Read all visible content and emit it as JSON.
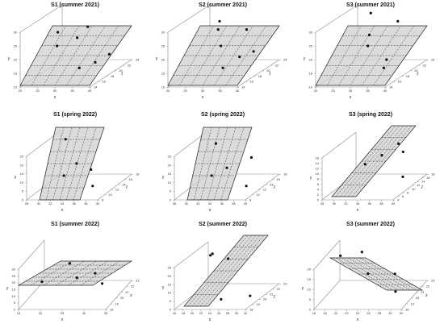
{
  "chart_data": [
    {
      "type": "scatter3d",
      "title": "S1 (summer 2021)",
      "xlabel": "x",
      "ylabel": "y",
      "zlabel": "z",
      "xticks": [
        "20",
        "25",
        "30",
        "35",
        "40"
      ],
      "yticks": [
        "10",
        "15",
        "20",
        "25",
        "30"
      ],
      "zticks": [
        "14",
        "16",
        "18",
        "20",
        "22",
        "24"
      ],
      "xlim": [
        20,
        40
      ],
      "ylim": [
        10,
        30
      ],
      "zlim": [
        14,
        24
      ],
      "points": [
        {
          "x": 26,
          "y": 26,
          "z": 18
        },
        {
          "x": 27,
          "y": 22,
          "z": 17
        },
        {
          "x": 31,
          "y": 25,
          "z": 21
        },
        {
          "x": 34,
          "y": 26,
          "z": 16
        },
        {
          "x": 31,
          "y": 12,
          "z": 19
        },
        {
          "x": 38,
          "y": 16,
          "z": 17
        },
        {
          "x": 36,
          "y": 14,
          "z": 22
        }
      ],
      "plane": {
        "tilt": "steep"
      }
    },
    {
      "type": "scatter3d",
      "title": "S2 (summer 2021)",
      "xlabel": "x",
      "ylabel": "y",
      "zlabel": "z",
      "xticks": [
        "20",
        "25",
        "30",
        "35",
        "40"
      ],
      "yticks": [
        "10",
        "15",
        "20",
        "25",
        "30"
      ],
      "zticks": [
        "14",
        "16",
        "18",
        "20",
        "22",
        "24"
      ],
      "xlim": [
        20,
        40
      ],
      "ylim": [
        10,
        30
      ],
      "zlim": [
        14,
        24
      ],
      "points": [
        {
          "x": 24,
          "y": 25,
          "z": 23
        },
        {
          "x": 26,
          "y": 24,
          "z": 21
        },
        {
          "x": 28,
          "y": 19,
          "z": 20
        },
        {
          "x": 33,
          "y": 23,
          "z": 22
        },
        {
          "x": 31,
          "y": 13,
          "z": 18
        },
        {
          "x": 37,
          "y": 18,
          "z": 17
        },
        {
          "x": 35,
          "y": 15,
          "z": 22
        }
      ],
      "plane": {
        "tilt": "steep"
      }
    },
    {
      "type": "scatter3d",
      "title": "S3 (summer 2021)",
      "xlabel": "x",
      "ylabel": "y",
      "zlabel": "z",
      "xticks": [
        "20",
        "25",
        "30",
        "35",
        "40"
      ],
      "yticks": [
        "10",
        "15",
        "20",
        "25",
        "30"
      ],
      "zticks": [
        "14",
        "16",
        "18",
        "20",
        "22",
        "24"
      ],
      "xlim": [
        20,
        40
      ],
      "ylim": [
        10,
        30
      ],
      "zlim": [
        14,
        24
      ],
      "points": [
        {
          "x": 25,
          "y": 28,
          "z": 23
        },
        {
          "x": 27,
          "y": 22,
          "z": 21
        },
        {
          "x": 29,
          "y": 20,
          "z": 19
        },
        {
          "x": 34,
          "y": 26,
          "z": 22
        },
        {
          "x": 36,
          "y": 14,
          "z": 17
        },
        {
          "x": 38,
          "y": 18,
          "z": 16
        }
      ],
      "plane": {
        "tilt": "steep"
      }
    },
    {
      "type": "scatter3d",
      "title": "S1 (spring 2022)",
      "xlabel": "x",
      "ylabel": "y",
      "zlabel": "z",
      "xticks": [
        "28",
        "30",
        "32",
        "34",
        "36",
        "38",
        "40"
      ],
      "yticks": [
        "0",
        "5",
        "10",
        "15",
        "20",
        "25"
      ],
      "zticks": [
        "8",
        "10",
        "12",
        "14",
        "16",
        "18"
      ],
      "xlim": [
        28,
        40
      ],
      "ylim": [
        0,
        25
      ],
      "zlim": [
        8,
        18
      ],
      "points": [
        {
          "x": 30,
          "y": 23,
          "z": 16
        },
        {
          "x": 33,
          "y": 12,
          "z": 14
        },
        {
          "x": 32,
          "y": 8,
          "z": 12
        },
        {
          "x": 36,
          "y": 10,
          "z": 13
        },
        {
          "x": 38,
          "y": 5,
          "z": 10
        }
      ],
      "plane": {
        "tilt": "vertical"
      }
    },
    {
      "type": "scatter3d",
      "title": "S2 (spring 2022)",
      "xlabel": "x",
      "ylabel": "y",
      "zlabel": "z",
      "xticks": [
        "28",
        "30",
        "32",
        "34",
        "36",
        "38",
        "40"
      ],
      "yticks": [
        "0",
        "5",
        "10",
        "15",
        "20",
        "25"
      ],
      "zticks": [
        "8",
        "10",
        "12",
        "14",
        "16",
        "18"
      ],
      "xlim": [
        28,
        40
      ],
      "ylim": [
        0,
        25
      ],
      "zlim": [
        8,
        18
      ],
      "points": [
        {
          "x": 31,
          "y": 22,
          "z": 15
        },
        {
          "x": 32,
          "y": 8,
          "z": 12
        },
        {
          "x": 34,
          "y": 11,
          "z": 13
        },
        {
          "x": 37,
          "y": 14,
          "z": 15
        },
        {
          "x": 39,
          "y": 5,
          "z": 10
        }
      ],
      "plane": {
        "tilt": "vertical"
      }
    },
    {
      "type": "scatter3d",
      "title": "S3 (spring 2022)",
      "xlabel": "x",
      "ylabel": "y",
      "zlabel": "z",
      "xticks": [
        "28",
        "30",
        "32",
        "34",
        "36",
        "38",
        "40"
      ],
      "yticks": [
        "0",
        "2",
        "4",
        "6",
        "8",
        "10",
        "12",
        "14",
        "16"
      ],
      "zticks": [
        "4",
        "6",
        "8",
        "10",
        "12",
        "14",
        "16",
        "18"
      ],
      "xlim": [
        28,
        40
      ],
      "ylim": [
        0,
        16
      ],
      "zlim": [
        4,
        18
      ],
      "points": [
        {
          "x": 32,
          "y": 8,
          "z": 12
        },
        {
          "x": 34,
          "y": 10,
          "z": 14
        },
        {
          "x": 36,
          "y": 13,
          "z": 16
        },
        {
          "x": 38,
          "y": 12,
          "z": 13
        },
        {
          "x": 40,
          "y": 6,
          "z": 8
        }
      ],
      "plane": {
        "tilt": "medium"
      }
    },
    {
      "type": "scatter3d",
      "title": "S1 (summer 2022)",
      "xlabel": "x",
      "ylabel": "y",
      "zlabel": "z",
      "xticks": [
        "15",
        "20",
        "25",
        "30",
        "35"
      ],
      "yticks": [
        "0",
        "5",
        "10",
        "15",
        "20",
        "25",
        "30"
      ],
      "zticks": [
        "18",
        "19",
        "20",
        "21",
        "22",
        "23"
      ],
      "xlim": [
        15,
        35
      ],
      "ylim": [
        0,
        30
      ],
      "zlim": [
        18,
        23
      ],
      "points": [
        {
          "x": 18,
          "y": 12,
          "z": 20
        },
        {
          "x": 22,
          "y": 17,
          "z": 22
        },
        {
          "x": 26,
          "y": 15,
          "z": 20
        },
        {
          "x": 29,
          "y": 14,
          "z": 21
        },
        {
          "x": 33,
          "y": 15,
          "z": 19
        }
      ],
      "plane": {
        "tilt": "shallow"
      }
    },
    {
      "type": "scatter3d",
      "title": "S2 (summer 2022)",
      "xlabel": "x",
      "ylabel": "y",
      "zlabel": "z",
      "xticks": [
        "16",
        "18",
        "20",
        "22",
        "24",
        "26",
        "28",
        "30",
        "32"
      ],
      "yticks": [
        "0",
        "5",
        "10",
        "15",
        "20",
        "25"
      ],
      "zticks": [
        "18",
        "19",
        "20",
        "21",
        "22",
        "23"
      ],
      "xlim": [
        16,
        32
      ],
      "ylim": [
        0,
        25
      ],
      "zlim": [
        18,
        23
      ],
      "points": [
        {
          "x": 18,
          "y": 20,
          "z": 22
        },
        {
          "x": 20,
          "y": 24,
          "z": 21
        },
        {
          "x": 22,
          "y": 18,
          "z": 22
        },
        {
          "x": 25,
          "y": 3,
          "z": 19
        },
        {
          "x": 30,
          "y": 2,
          "z": 20
        }
      ],
      "plane": {
        "tilt": "medium"
      }
    },
    {
      "type": "scatter3d",
      "title": "S3 (summer 2022)",
      "xlabel": "x",
      "ylabel": "y",
      "zlabel": "z",
      "xticks": [
        "16",
        "18",
        "20",
        "22",
        "24",
        "26",
        "28",
        "30",
        "32"
      ],
      "yticks": [
        "0",
        "5",
        "10",
        "15",
        "20"
      ],
      "zticks": [
        "18",
        "19",
        "20",
        "21",
        "22",
        "23"
      ],
      "xlim": [
        16,
        32
      ],
      "ylim": [
        0,
        20
      ],
      "zlim": [
        18,
        23
      ],
      "points": [
        {
          "x": 18,
          "y": 18,
          "z": 21
        },
        {
          "x": 21,
          "y": 17,
          "z": 22
        },
        {
          "x": 24,
          "y": 12,
          "z": 20
        },
        {
          "x": 28,
          "y": 9,
          "z": 21
        },
        {
          "x": 30,
          "y": 6,
          "z": 19
        }
      ],
      "plane": {
        "tilt": "downward"
      }
    }
  ]
}
